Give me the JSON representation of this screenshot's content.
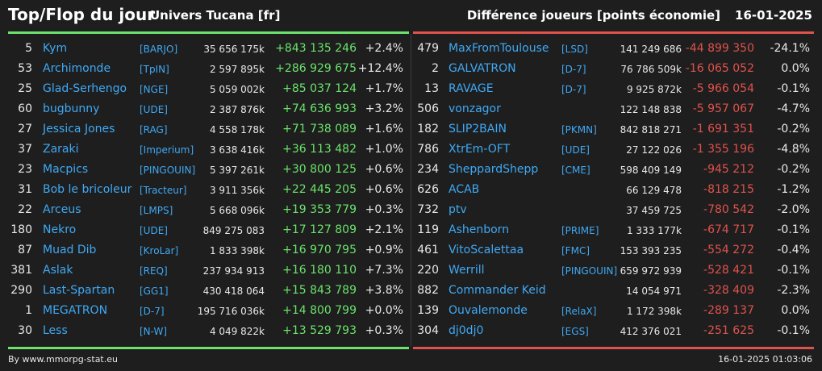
{
  "header": {
    "title": "Top/Flop du jour",
    "server": "Univers Tucana [fr]",
    "metric": "Différence joueurs [points économie]",
    "date": "16-01-2025"
  },
  "colors": {
    "up": "#6be36b",
    "down": "#e0524c",
    "link": "#3fa9f5",
    "background": "#1e1e1e"
  },
  "top": [
    {
      "rank": "5",
      "name": "Kym",
      "guild": "[BARJO]",
      "points": "35 656 175k",
      "diff": "+843 135 246",
      "pct": "+2.4%"
    },
    {
      "rank": "53",
      "name": "Archimonde",
      "guild": "[TpIN]",
      "points": "2 597 895k",
      "diff": "+286 929 675",
      "pct": "+12.4%"
    },
    {
      "rank": "25",
      "name": "Glad-Serhengo",
      "guild": "[NGE]",
      "points": "5 059 002k",
      "diff": "+85 037 124",
      "pct": "+1.7%"
    },
    {
      "rank": "60",
      "name": "bugbunny",
      "guild": "[UDE]",
      "points": "2 387 876k",
      "diff": "+74 636 993",
      "pct": "+3.2%"
    },
    {
      "rank": "27",
      "name": "Jessica Jones",
      "guild": "[RAG]",
      "points": "4 558 178k",
      "diff": "+71 738 089",
      "pct": "+1.6%"
    },
    {
      "rank": "37",
      "name": "Zaraki",
      "guild": "[Imperium]",
      "points": "3 638 416k",
      "diff": "+36 113 482",
      "pct": "+1.0%"
    },
    {
      "rank": "23",
      "name": "Macpics",
      "guild": "[PINGOUIN]",
      "points": "5 397 261k",
      "diff": "+30 800 125",
      "pct": "+0.6%"
    },
    {
      "rank": "31",
      "name": "Bob le bricoleur",
      "guild": "[Tracteur]",
      "points": "3 911 356k",
      "diff": "+22 445 205",
      "pct": "+0.6%"
    },
    {
      "rank": "22",
      "name": "Arceus",
      "guild": "[LMPS]",
      "points": "5 668 096k",
      "diff": "+19 353 779",
      "pct": "+0.3%"
    },
    {
      "rank": "180",
      "name": "Nekro",
      "guild": "[UDE]",
      "points": "849 275 083",
      "diff": "+17 127 809",
      "pct": "+2.1%"
    },
    {
      "rank": "87",
      "name": "Muad Dib",
      "guild": "[KroLar]",
      "points": "1 833 398k",
      "diff": "+16 970 795",
      "pct": "+0.9%"
    },
    {
      "rank": "381",
      "name": "Aslak",
      "guild": "[REQ]",
      "points": "237 934 913",
      "diff": "+16 180 110",
      "pct": "+7.3%"
    },
    {
      "rank": "290",
      "name": "Last-Spartan",
      "guild": "[GG1]",
      "points": "430 418 064",
      "diff": "+15 843 789",
      "pct": "+3.8%"
    },
    {
      "rank": "1",
      "name": "MEGATRON",
      "guild": "[D-7]",
      "points": "195 716 036k",
      "diff": "+14 800 799",
      "pct": "+0.0%"
    },
    {
      "rank": "30",
      "name": "Less",
      "guild": "[N-W]",
      "points": "4 049 822k",
      "diff": "+13 529 793",
      "pct": "+0.3%"
    }
  ],
  "flop": [
    {
      "rank": "479",
      "name": "MaxFromToulouse",
      "guild": "[LSD]",
      "points": "141 249 686",
      "diff": "-44 899 350",
      "pct": "-24.1%"
    },
    {
      "rank": "2",
      "name": "GALVATRON",
      "guild": "[D-7]",
      "points": "76 786 509k",
      "diff": "-16 065 052",
      "pct": "0.0%"
    },
    {
      "rank": "13",
      "name": "RAVAGE",
      "guild": "[D-7]",
      "points": "9 925 872k",
      "diff": "-5 966 054",
      "pct": "-0.1%"
    },
    {
      "rank": "506",
      "name": "vonzagor",
      "guild": "",
      "points": "122 148 838",
      "diff": "-5 957 067",
      "pct": "-4.7%"
    },
    {
      "rank": "182",
      "name": "SLIP2BAIN",
      "guild": "[PKMN]",
      "points": "842 818 271",
      "diff": "-1 691 351",
      "pct": "-0.2%"
    },
    {
      "rank": "786",
      "name": "XtrEm-OFT",
      "guild": "[UDE]",
      "points": "27 122 026",
      "diff": "-1 355 196",
      "pct": "-4.8%"
    },
    {
      "rank": "234",
      "name": "SheppardShepp",
      "guild": "[CME]",
      "points": "598 409 149",
      "diff": "-945 212",
      "pct": "-0.2%"
    },
    {
      "rank": "626",
      "name": "ACAB",
      "guild": "",
      "points": "66 129 478",
      "diff": "-818 215",
      "pct": "-1.2%"
    },
    {
      "rank": "732",
      "name": "ptv",
      "guild": "",
      "points": "37 459 725",
      "diff": "-780 542",
      "pct": "-2.0%"
    },
    {
      "rank": "119",
      "name": "Ashenborn",
      "guild": "[PRIME]",
      "points": "1 333 177k",
      "diff": "-674 717",
      "pct": "-0.1%"
    },
    {
      "rank": "461",
      "name": "VitoScalettaa",
      "guild": "[FMC]",
      "points": "153 393 235",
      "diff": "-554 272",
      "pct": "-0.4%"
    },
    {
      "rank": "220",
      "name": "Werrill",
      "guild": "[PINGOUIN]",
      "points": "659 972 939",
      "diff": "-528 421",
      "pct": "-0.1%"
    },
    {
      "rank": "882",
      "name": "Commander Keid",
      "guild": "",
      "points": "14 054 971",
      "diff": "-328 409",
      "pct": "-2.3%"
    },
    {
      "rank": "139",
      "name": "Ouvalemonde",
      "guild": "[RelaX]",
      "points": "1 172 398k",
      "diff": "-289 137",
      "pct": "0.0%"
    },
    {
      "rank": "304",
      "name": "dj0dj0",
      "guild": "[EGS]",
      "points": "412 376 021",
      "diff": "-251 625",
      "pct": "-0.1%"
    }
  ],
  "footer": {
    "credit": "By www.mmorpg-stat.eu",
    "timestamp": "16-01-2025 01:03:06"
  }
}
